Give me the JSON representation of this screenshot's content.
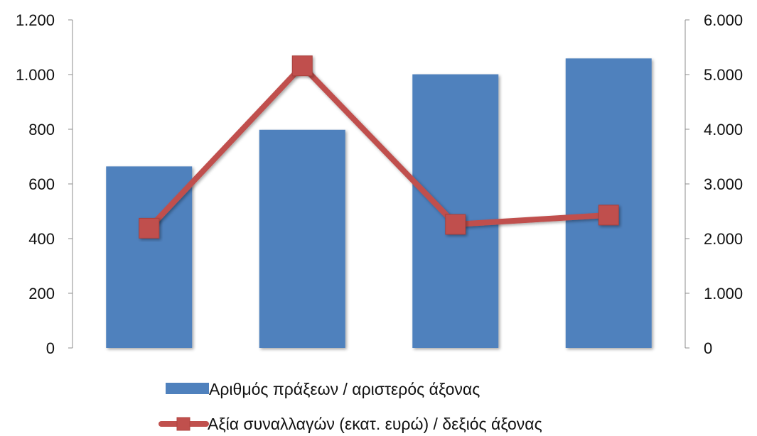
{
  "chart_data": {
    "type": "bar+line",
    "categories": [
      "",
      "",
      "",
      ""
    ],
    "series": [
      {
        "name": "Αριθμός πράξεων / αριστερός άξονας",
        "type": "bar",
        "axis": "left",
        "values": [
          664,
          798,
          1001,
          1059
        ],
        "color": "#4f81bd"
      },
      {
        "name": "Αξία συναλλαγών (εκατ. ευρώ) / δεξιός άξονας",
        "type": "line",
        "axis": "right",
        "marker": "square",
        "values": [
          2190,
          5160,
          2260,
          2430
        ],
        "color": "#c0504d"
      }
    ],
    "y_left": {
      "ylim": [
        0,
        1200
      ],
      "ticks": [
        0,
        200,
        400,
        600,
        800,
        1000,
        1200
      ],
      "tick_labels": [
        "0",
        "200",
        "400",
        "600",
        "800",
        "1.000",
        "1.200"
      ]
    },
    "y_right": {
      "ylim": [
        0,
        6000
      ],
      "ticks": [
        0,
        1000,
        2000,
        3000,
        4000,
        5000,
        6000
      ],
      "tick_labels": [
        "0",
        "1.000",
        "2.000",
        "3.000",
        "4.000",
        "5.000",
        "6.000"
      ]
    },
    "grid": false,
    "legend_position": "bottom",
    "title": "",
    "xlabel": "",
    "ylabel": ""
  }
}
